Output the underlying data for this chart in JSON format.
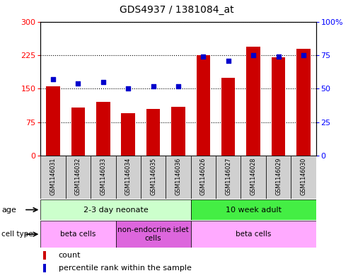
{
  "title": "GDS4937 / 1381084_at",
  "samples": [
    "GSM1146031",
    "GSM1146032",
    "GSM1146033",
    "GSM1146034",
    "GSM1146035",
    "GSM1146036",
    "GSM1146026",
    "GSM1146027",
    "GSM1146028",
    "GSM1146029",
    "GSM1146030"
  ],
  "bar_values": [
    155,
    107,
    120,
    95,
    105,
    110,
    225,
    175,
    245,
    220,
    240
  ],
  "dot_values": [
    57,
    54,
    55,
    50,
    52,
    52,
    74,
    71,
    75,
    74,
    75
  ],
  "bar_color": "#cc0000",
  "dot_color": "#0000cc",
  "left_ylim": [
    0,
    300
  ],
  "right_ylim": [
    0,
    100
  ],
  "left_yticks": [
    0,
    75,
    150,
    225,
    300
  ],
  "right_yticks": [
    0,
    25,
    50,
    75,
    100
  ],
  "right_yticklabels": [
    "0",
    "25",
    "50",
    "75",
    "100%"
  ],
  "age_groups": [
    {
      "label": "2-3 day neonate",
      "start": 0,
      "end": 6,
      "color": "#ccffcc"
    },
    {
      "label": "10 week adult",
      "start": 6,
      "end": 11,
      "color": "#44ee44"
    }
  ],
  "cell_type_groups": [
    {
      "label": "beta cells",
      "start": 0,
      "end": 3,
      "color": "#ffaaff"
    },
    {
      "label": "non-endocrine islet\ncells",
      "start": 3,
      "end": 6,
      "color": "#dd66dd"
    },
    {
      "label": "beta cells",
      "start": 6,
      "end": 11,
      "color": "#ffaaff"
    }
  ],
  "tick_bg": "#d0d0d0"
}
